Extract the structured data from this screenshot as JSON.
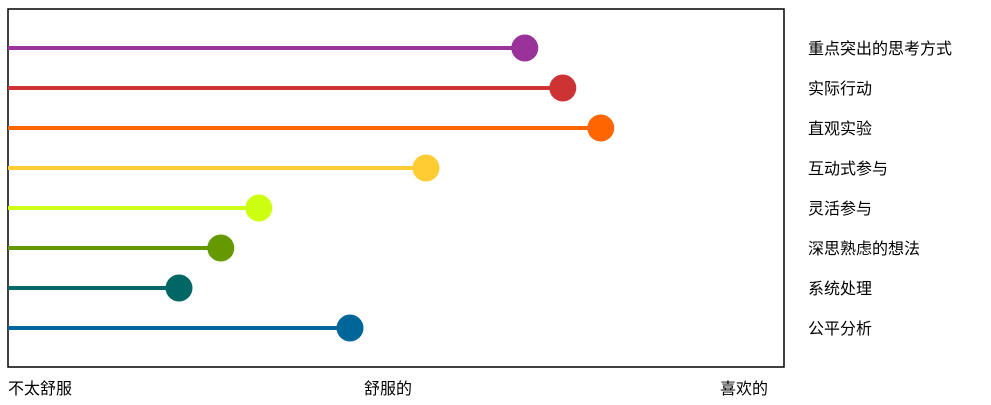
{
  "chart_data": {
    "type": "lollipop",
    "orientation": "horizontal",
    "x_ticks": [
      {
        "label": "不太舒服",
        "value": 0
      },
      {
        "label": "舒服的",
        "value": 50
      },
      {
        "label": "喜欢的",
        "value": 100
      }
    ],
    "xlim": [
      0,
      100
    ],
    "grid": false,
    "legend": "right",
    "series": [
      {
        "name": "重点突出的思考方式",
        "value": 68,
        "color": "#993399"
      },
      {
        "name": "实际行动",
        "value": 73,
        "color": "#cc3333"
      },
      {
        "name": "直观实验",
        "value": 78,
        "color": "#ff6600"
      },
      {
        "name": "互动式参与",
        "value": 55,
        "color": "#ffcc33"
      },
      {
        "name": "灵活参与",
        "value": 33,
        "color": "#ccff11"
      },
      {
        "name": "深思熟虑的想法",
        "value": 28,
        "color": "#669900"
      },
      {
        "name": "系统处理",
        "value": 22.5,
        "color": "#006666"
      },
      {
        "name": "公平分析",
        "value": 45,
        "color": "#006699"
      }
    ]
  }
}
